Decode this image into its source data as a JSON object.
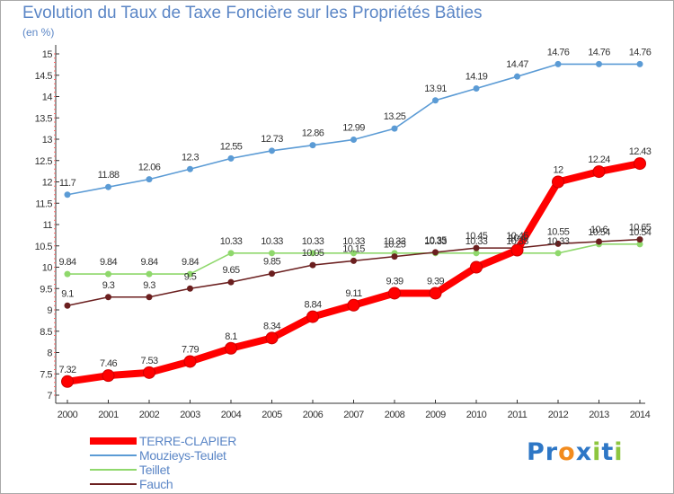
{
  "title": "Evolution du Taux de Taxe Foncière sur les Propriétés Bâties",
  "unit_label": "(en %)",
  "brand": {
    "letters": [
      "P",
      "r",
      "o",
      "x",
      "i",
      "t",
      "i"
    ],
    "colors": [
      "#2e77c6",
      "#2e77c6",
      "#f28b1e",
      "#2e77c6",
      "#8dc63f",
      "#2e77c6",
      "#8dc63f"
    ]
  },
  "chart_data": {
    "type": "line",
    "x": [
      "2000",
      "2001",
      "2002",
      "2003",
      "2004",
      "2005",
      "2006",
      "2007",
      "2008",
      "2009",
      "2010",
      "2011",
      "2012",
      "2013",
      "2014"
    ],
    "ylim": [
      7,
      15
    ],
    "y_ticks": [
      "7",
      "7.5",
      "8",
      "8.5",
      "9",
      "9.5",
      "10",
      "10.5",
      "11",
      "11.5",
      "12",
      "12.5",
      "13",
      "13.5",
      "14",
      "14.5",
      "15"
    ],
    "grid": false,
    "legend_position": "bottom-left",
    "series": [
      {
        "name": "Mouzieys-Teulet",
        "color": "#5b9bd5",
        "values": [
          11.7,
          11.88,
          12.06,
          12.3,
          12.55,
          12.73,
          12.86,
          12.99,
          13.25,
          13.91,
          14.19,
          14.47,
          14.76,
          14.76,
          14.76
        ],
        "labels": [
          "11.7",
          "11.88",
          "12.06",
          "12.3",
          "12.55",
          "12.73",
          "12.86",
          "12.99",
          "13.25",
          "13.91",
          "14.19",
          "14.47",
          "14.76",
          "14.76",
          "14.76"
        ]
      },
      {
        "name": "Teillet",
        "color": "#8fd86c",
        "values": [
          9.84,
          9.84,
          9.84,
          9.84,
          10.33,
          10.33,
          10.33,
          10.33,
          10.33,
          10.33,
          10.33,
          10.33,
          10.33,
          10.54,
          10.54
        ],
        "labels": [
          "9.84",
          "9.84",
          "9.84",
          "9.84",
          "10.33",
          "10.33",
          "10.33",
          "10.33",
          "10.33",
          "10.33",
          "10.33",
          "10.33",
          "10.33",
          "10.54",
          "10.54"
        ]
      },
      {
        "name": "Fauch",
        "color": "#6b1f1f",
        "values": [
          9.1,
          9.3,
          9.3,
          9.5,
          9.65,
          9.85,
          10.05,
          10.15,
          10.25,
          10.35,
          10.45,
          10.45,
          10.55,
          10.6,
          10.65
        ],
        "labels": [
          "9.1",
          "9.3",
          "9.3",
          "9.5",
          "9.65",
          "9.85",
          "10.05",
          "10.15",
          "10.25",
          "10.35",
          "10.45",
          "10.45",
          "10.55",
          "10.6",
          "10.65"
        ]
      },
      {
        "name": "TERRE-CLAPIER",
        "color": "#ff0000",
        "values": [
          7.32,
          7.46,
          7.53,
          7.79,
          8.1,
          8.34,
          8.84,
          9.11,
          9.39,
          9.39,
          10.0,
          10.4,
          12.0,
          12.24,
          12.43
        ],
        "labels": [
          "7.32",
          "7.46",
          "7.53",
          "7.79",
          "8.1",
          "8.34",
          "8.84",
          "9.11",
          "9.39",
          "9.39",
          "",
          "10.4",
          "12",
          "12.24",
          "12.43"
        ]
      }
    ],
    "legend_order": [
      "TERRE-CLAPIER",
      "Mouzieys-Teulet",
      "Teillet",
      "Fauch"
    ]
  }
}
